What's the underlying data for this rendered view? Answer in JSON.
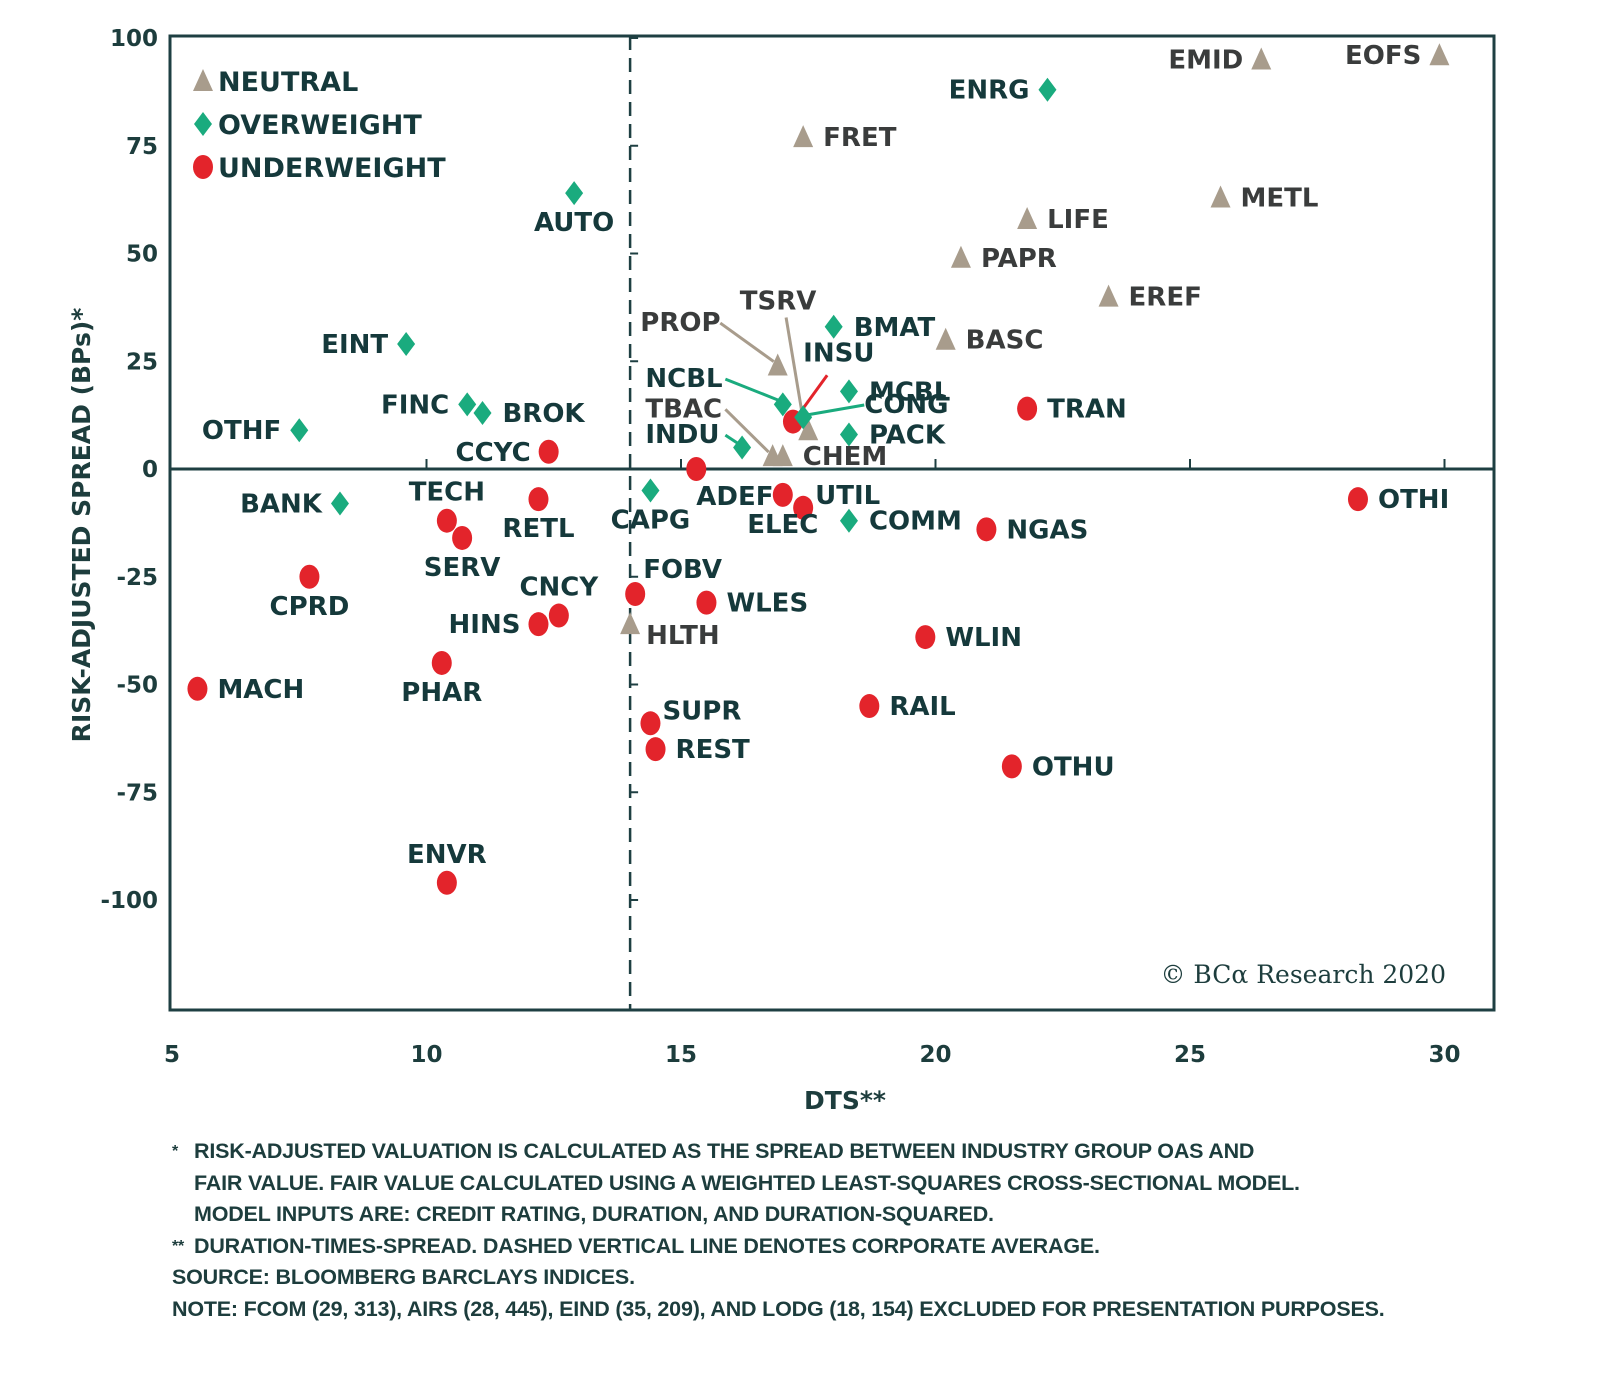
{
  "chart_data": {
    "type": "scatter",
    "title": "",
    "xlabel": "DTS**",
    "ylabel": "RISK-ADJUSTED SPREAD (BPs)*",
    "xlim": [
      5,
      31
    ],
    "ylim": [
      -125,
      100
    ],
    "xticks": [
      5,
      10,
      15,
      20,
      25,
      30
    ],
    "yticks": [
      100,
      75,
      50,
      25,
      0,
      -25,
      -50,
      -75,
      -100
    ],
    "grid": false,
    "zero_line": true,
    "reference_line": {
      "axis": "x",
      "value": 14,
      "style": "dashed",
      "meaning": "corporate average DTS"
    },
    "legend": {
      "placement": "top-left",
      "entries": [
        {
          "key": "neutral",
          "label": "NEUTRAL",
          "marker": "triangle",
          "color": "#a89c8c"
        },
        {
          "key": "overweight",
          "label": "OVERWEIGHT",
          "marker": "diamond",
          "color": "#1aab7e"
        },
        {
          "key": "underweight",
          "label": "UNDERWEIGHT",
          "marker": "circle",
          "color": "#e3242b"
        }
      ]
    },
    "label_colors": {
      "neutral": "#3a3c3c",
      "overweight": "#15393b",
      "underweight": "#15393b"
    },
    "points": [
      {
        "label": "EMID",
        "x": 26.4,
        "y": 95,
        "group": "neutral",
        "pos": "left"
      },
      {
        "label": "EOFS",
        "x": 29.9,
        "y": 96,
        "group": "neutral",
        "pos": "left"
      },
      {
        "label": "ENRG",
        "x": 22.2,
        "y": 88,
        "group": "overweight",
        "pos": "left"
      },
      {
        "label": "FRET",
        "x": 17.4,
        "y": 77,
        "group": "neutral",
        "pos": "right"
      },
      {
        "label": "METL",
        "x": 25.6,
        "y": 63,
        "group": "neutral",
        "pos": "right"
      },
      {
        "label": "LIFE",
        "x": 21.8,
        "y": 58,
        "group": "neutral",
        "pos": "right"
      },
      {
        "label": "PAPR",
        "x": 20.5,
        "y": 49,
        "group": "neutral",
        "pos": "right"
      },
      {
        "label": "EREF",
        "x": 23.4,
        "y": 40,
        "group": "neutral",
        "pos": "right"
      },
      {
        "label": "BASC",
        "x": 20.2,
        "y": 30,
        "group": "neutral",
        "pos": "right"
      },
      {
        "label": "AUTO",
        "x": 12.9,
        "y": 64,
        "group": "overweight",
        "pos": "below"
      },
      {
        "label": "EINT",
        "x": 9.6,
        "y": 29,
        "group": "overweight",
        "pos": "left"
      },
      {
        "label": "FINC",
        "x": 10.8,
        "y": 15,
        "group": "overweight",
        "pos": "left"
      },
      {
        "label": "BROK",
        "x": 11.1,
        "y": 13,
        "group": "overweight",
        "pos": "right"
      },
      {
        "label": "OTHF",
        "x": 7.5,
        "y": 9,
        "group": "overweight",
        "pos": "left"
      },
      {
        "label": "CCYC",
        "x": 12.4,
        "y": 4,
        "group": "underweight",
        "pos": "left"
      },
      {
        "label": "BMAT",
        "x": 18.0,
        "y": 33,
        "group": "overweight",
        "pos": "right"
      },
      {
        "label": "PROP",
        "x": 16.9,
        "y": 24,
        "group": "neutral",
        "pos": "leader",
        "lx": 14.2,
        "ly": 32
      },
      {
        "label": "TSRV",
        "x": 17.5,
        "y": 9,
        "group": "neutral",
        "pos": "leader",
        "lx": 16.2,
        "ly": 37
      },
      {
        "label": "INSU",
        "x": 17.2,
        "y": 11,
        "group": "underweight",
        "pos": "leader",
        "lx": 17.4,
        "ly": 25
      },
      {
        "label": "NCBL",
        "x": 17.0,
        "y": 15,
        "group": "overweight",
        "pos": "leader",
        "lx": 14.3,
        "ly": 19
      },
      {
        "label": "MCBL",
        "x": 18.3,
        "y": 18,
        "group": "overweight",
        "pos": "right"
      },
      {
        "label": "CONG",
        "x": 17.4,
        "y": 12,
        "group": "overweight",
        "pos": "leader",
        "lx": 18.6,
        "ly": 13
      },
      {
        "label": "PACK",
        "x": 18.3,
        "y": 8,
        "group": "overweight",
        "pos": "right"
      },
      {
        "label": "TBAC",
        "x": 16.8,
        "y": 3,
        "group": "neutral",
        "pos": "leader",
        "lx": 14.3,
        "ly": 12
      },
      {
        "label": "CHEM",
        "x": 17.0,
        "y": 3,
        "group": "neutral",
        "pos": "right"
      },
      {
        "label": "INDU",
        "x": 16.2,
        "y": 5,
        "group": "overweight",
        "pos": "leader",
        "lx": 14.3,
        "ly": 6
      },
      {
        "label": "TRAN",
        "x": 21.8,
        "y": 14,
        "group": "underweight",
        "pos": "right"
      },
      {
        "label": "ADEF",
        "x": 15.3,
        "y": 0,
        "group": "underweight",
        "pos": "below-right"
      },
      {
        "label": "CAPG",
        "x": 14.4,
        "y": -5,
        "group": "overweight",
        "pos": "below"
      },
      {
        "label": "UTIL",
        "x": 17.4,
        "y": -9,
        "group": "underweight",
        "pos": "right-up"
      },
      {
        "label": "ELEC",
        "x": 17.0,
        "y": -6,
        "group": "underweight",
        "pos": "below"
      },
      {
        "label": "COMM",
        "x": 18.3,
        "y": -12,
        "group": "overweight",
        "pos": "right"
      },
      {
        "label": "NGAS",
        "x": 21.0,
        "y": -14,
        "group": "underweight",
        "pos": "right"
      },
      {
        "label": "OTHI",
        "x": 28.3,
        "y": -7,
        "group": "underweight",
        "pos": "right"
      },
      {
        "label": "BANK",
        "x": 8.3,
        "y": -8,
        "group": "overweight",
        "pos": "left"
      },
      {
        "label": "TECH",
        "x": 10.4,
        "y": -12,
        "group": "underweight",
        "pos": "above"
      },
      {
        "label": "SERV",
        "x": 10.7,
        "y": -16,
        "group": "underweight",
        "pos": "below"
      },
      {
        "label": "RETL",
        "x": 12.2,
        "y": -7,
        "group": "underweight",
        "pos": "below"
      },
      {
        "label": "CPRD",
        "x": 7.7,
        "y": -25,
        "group": "underweight",
        "pos": "below"
      },
      {
        "label": "CNCY",
        "x": 12.6,
        "y": -34,
        "group": "underweight",
        "pos": "above"
      },
      {
        "label": "HINS",
        "x": 12.2,
        "y": -36,
        "group": "underweight",
        "pos": "left"
      },
      {
        "label": "FOBV",
        "x": 14.1,
        "y": -29,
        "group": "underweight",
        "pos": "above-right"
      },
      {
        "label": "WLES",
        "x": 15.5,
        "y": -31,
        "group": "underweight",
        "pos": "right"
      },
      {
        "label": "HLTH",
        "x": 14.0,
        "y": -36,
        "group": "neutral",
        "pos": "right-down"
      },
      {
        "label": "WLIN",
        "x": 19.8,
        "y": -39,
        "group": "underweight",
        "pos": "right"
      },
      {
        "label": "PHAR",
        "x": 10.3,
        "y": -45,
        "group": "underweight",
        "pos": "below"
      },
      {
        "label": "MACH",
        "x": 5.5,
        "y": -51,
        "group": "underweight",
        "pos": "right"
      },
      {
        "label": "RAIL",
        "x": 18.7,
        "y": -55,
        "group": "underweight",
        "pos": "right"
      },
      {
        "label": "SUPR",
        "x": 14.4,
        "y": -59,
        "group": "underweight",
        "pos": "right-up"
      },
      {
        "label": "REST",
        "x": 14.5,
        "y": -65,
        "group": "underweight",
        "pos": "right"
      },
      {
        "label": "OTHU",
        "x": 21.5,
        "y": -69,
        "group": "underweight",
        "pos": "right"
      },
      {
        "label": "ENVR",
        "x": 10.4,
        "y": -96,
        "group": "underweight",
        "pos": "above"
      }
    ],
    "annotations": [
      "© BCα Research 2020"
    ]
  },
  "copyright": "© BCα Research 2020",
  "footnotes": {
    "line1_mark": "*",
    "line1": "RISK-ADJUSTED VALUATION IS CALCULATED AS THE SPREAD BETWEEN INDUSTRY GROUP OAS AND",
    "line2": "FAIR VALUE. FAIR VALUE CALCULATED USING A WEIGHTED LEAST-SQUARES CROSS-SECTIONAL MODEL.",
    "line3": "MODEL INPUTS ARE: CREDIT RATING, DURATION, AND DURATION-SQUARED.",
    "line4_mark": "**",
    "line4": "DURATION-TIMES-SPREAD. DASHED VERTICAL LINE DENOTES CORPORATE AVERAGE.",
    "source": "SOURCE: BLOOMBERG BARCLAYS INDICES.",
    "note": "NOTE: FCOM (29, 313), AIRS (28, 445), EIND (35, 209), AND LODG (18, 154) EXCLUDED FOR PRESENTATION PURPOSES."
  }
}
